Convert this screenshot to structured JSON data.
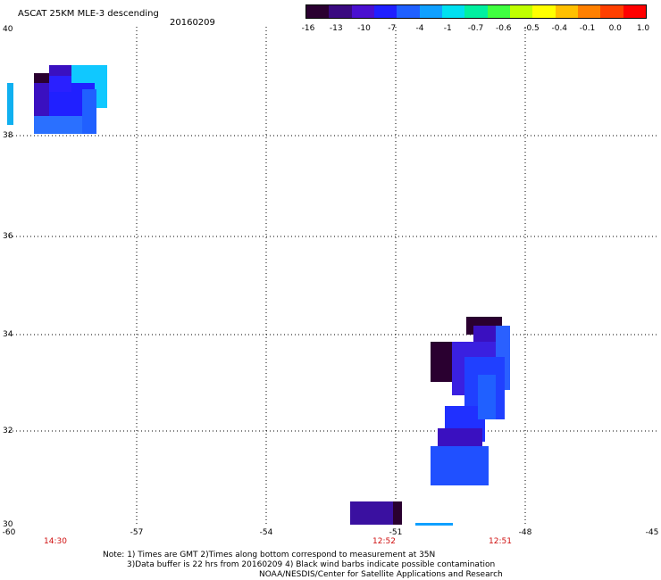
{
  "title": "ASCAT 25KM MLE-3 descending",
  "date": "20160209",
  "colorbar": {
    "labels": [
      "-16",
      "-13",
      "-10",
      "-7",
      "-4",
      "-1",
      "-0.7",
      "-0.6",
      "-0.5",
      "-0.4",
      "-0.1",
      "0.0",
      "1.0"
    ],
    "colors": [
      "#2a0030",
      "#3a0a80",
      "#4a10d0",
      "#2020ff",
      "#2060ff",
      "#10a0ff",
      "#00e0f0",
      "#00f0a0",
      "#40ff40",
      "#c0ff00",
      "#ffff00",
      "#ffc000",
      "#ff8000",
      "#ff4000",
      "#ff0000"
    ]
  },
  "lat_labels": [
    "40",
    "38",
    "36",
    "34",
    "32",
    "30"
  ],
  "lon_labels": [
    "-60",
    "-57",
    "-54",
    "-51",
    "-48",
    "-45"
  ],
  "times": [
    "14:30",
    "12:52",
    "12:51"
  ],
  "notes": [
    "Note: 1) Times are GMT 2)Times along bottom correspond to measurement at 35N",
    "3)Data buffer is 22 hrs from 20160209 4) Black wind barbs indicate possible contamination",
    "NOAA/NESDIS/Center for Satellite Applications and Research"
  ]
}
